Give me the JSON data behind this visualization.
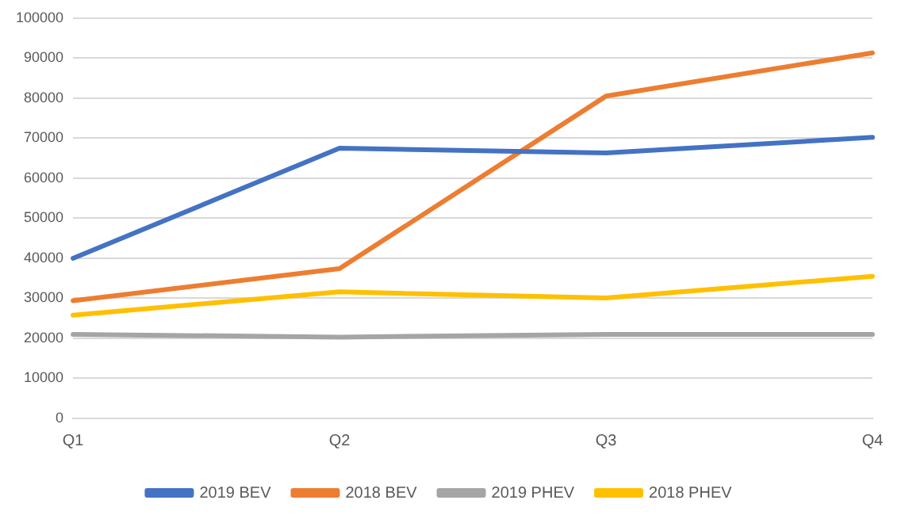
{
  "chart_data": {
    "type": "line",
    "categories": [
      "Q1",
      "Q2",
      "Q3",
      "Q4"
    ],
    "series": [
      {
        "name": "2019 BEV",
        "color": "#4472c4",
        "values": [
          40000,
          67500,
          66300,
          70200
        ]
      },
      {
        "name": "2018 BEV",
        "color": "#ed7d31",
        "values": [
          29400,
          37400,
          80500,
          91300
        ]
      },
      {
        "name": "2019 PHEV",
        "color": "#a5a5a5",
        "values": [
          21000,
          20300,
          21000,
          21000
        ]
      },
      {
        "name": "2018 PHEV",
        "color": "#ffc000",
        "values": [
          25800,
          31600,
          30100,
          35500
        ]
      }
    ],
    "ylim": [
      0,
      100000
    ],
    "yticks": [
      0,
      10000,
      20000,
      30000,
      40000,
      50000,
      60000,
      70000,
      80000,
      90000,
      100000
    ],
    "grid": "y",
    "legend": "bottom",
    "marker": "none",
    "line_style": "solid"
  }
}
